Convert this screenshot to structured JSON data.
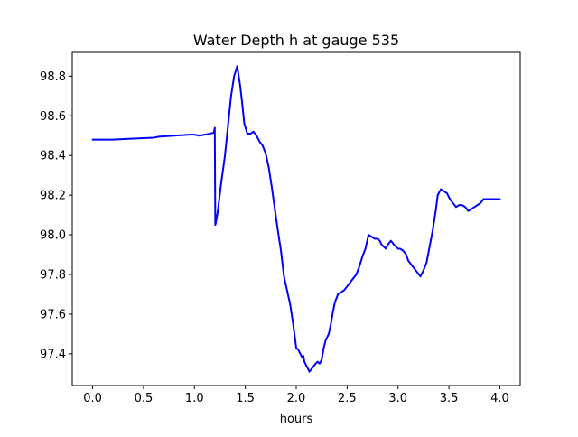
{
  "chart_data": {
    "type": "line",
    "title": "Water Depth h at gauge 535",
    "xlabel": "hours",
    "ylabel": "",
    "xlim": [
      -0.2,
      4.2
    ],
    "ylim": [
      97.24,
      98.92
    ],
    "grid": false,
    "legend": "none",
    "x_ticks": [
      0.0,
      0.5,
      1.0,
      1.5,
      2.0,
      2.5,
      3.0,
      3.5,
      4.0
    ],
    "x_tick_labels": [
      "0.0",
      "0.5",
      "1.0",
      "1.5",
      "2.0",
      "2.5",
      "3.0",
      "3.5",
      "4.0"
    ],
    "y_ticks": [
      97.4,
      97.6,
      97.8,
      98.0,
      98.2,
      98.4,
      98.6,
      98.8
    ],
    "y_tick_labels": [
      "97.4",
      "97.6",
      "97.8",
      "98.0",
      "98.2",
      "98.4",
      "98.6",
      "98.8"
    ],
    "series": [
      {
        "color": "#0000ff",
        "x": [
          0.0,
          0.2,
          0.4,
          0.6,
          0.65,
          0.8,
          0.95,
          1.0,
          1.05,
          1.1,
          1.15,
          1.19,
          1.2,
          1.205,
          1.21,
          1.23,
          1.26,
          1.3,
          1.33,
          1.36,
          1.39,
          1.42,
          1.45,
          1.47,
          1.49,
          1.52,
          1.55,
          1.58,
          1.61,
          1.64,
          1.67,
          1.7,
          1.73,
          1.76,
          1.79,
          1.82,
          1.85,
          1.88,
          1.91,
          1.94,
          1.97,
          1.99,
          2.0,
          2.02,
          2.04,
          2.06,
          2.07,
          2.08,
          2.1,
          2.13,
          2.16,
          2.19,
          2.21,
          2.23,
          2.25,
          2.27,
          2.29,
          2.3,
          2.32,
          2.34,
          2.36,
          2.38,
          2.41,
          2.44,
          2.47,
          2.5,
          2.53,
          2.56,
          2.59,
          2.62,
          2.65,
          2.68,
          2.71,
          2.74,
          2.77,
          2.8,
          2.82,
          2.84,
          2.86,
          2.88,
          2.9,
          2.93,
          2.96,
          3.0,
          3.02,
          3.05,
          3.08,
          3.1,
          3.13,
          3.16,
          3.19,
          3.22,
          3.25,
          3.28,
          3.31,
          3.34,
          3.37,
          3.39,
          3.42,
          3.45,
          3.48,
          3.51,
          3.54,
          3.57,
          3.6,
          3.63,
          3.66,
          3.69,
          3.72,
          3.75,
          3.78,
          3.81,
          3.84,
          3.87,
          3.89,
          3.91,
          3.94,
          3.97,
          4.0
        ],
        "y": [
          98.48,
          98.48,
          98.485,
          98.49,
          98.495,
          98.5,
          98.505,
          98.505,
          98.5,
          98.505,
          98.51,
          98.515,
          98.54,
          98.05,
          98.06,
          98.12,
          98.25,
          98.4,
          98.55,
          98.7,
          98.8,
          98.85,
          98.75,
          98.66,
          98.56,
          98.51,
          98.51,
          98.52,
          98.5,
          98.47,
          98.45,
          98.41,
          98.34,
          98.24,
          98.13,
          98.02,
          97.92,
          97.79,
          97.72,
          97.65,
          97.55,
          97.47,
          97.43,
          97.42,
          97.4,
          97.38,
          97.39,
          97.36,
          97.34,
          97.31,
          97.33,
          97.35,
          97.36,
          97.35,
          97.37,
          97.43,
          97.47,
          97.48,
          97.5,
          97.55,
          97.61,
          97.66,
          97.7,
          97.71,
          97.72,
          97.74,
          97.76,
          97.78,
          97.8,
          97.84,
          97.89,
          97.93,
          98.0,
          97.99,
          97.98,
          97.98,
          97.97,
          97.95,
          97.94,
          97.93,
          97.95,
          97.97,
          97.95,
          97.93,
          97.93,
          97.92,
          97.9,
          97.87,
          97.85,
          97.83,
          97.81,
          97.79,
          97.82,
          97.86,
          97.94,
          98.02,
          98.12,
          98.2,
          98.23,
          98.22,
          98.21,
          98.18,
          98.16,
          98.14,
          98.15,
          98.15,
          98.14,
          98.12,
          98.13,
          98.14,
          98.15,
          98.16,
          98.18,
          98.18,
          98.18,
          98.18,
          98.18,
          98.18,
          98.18
        ]
      }
    ]
  }
}
